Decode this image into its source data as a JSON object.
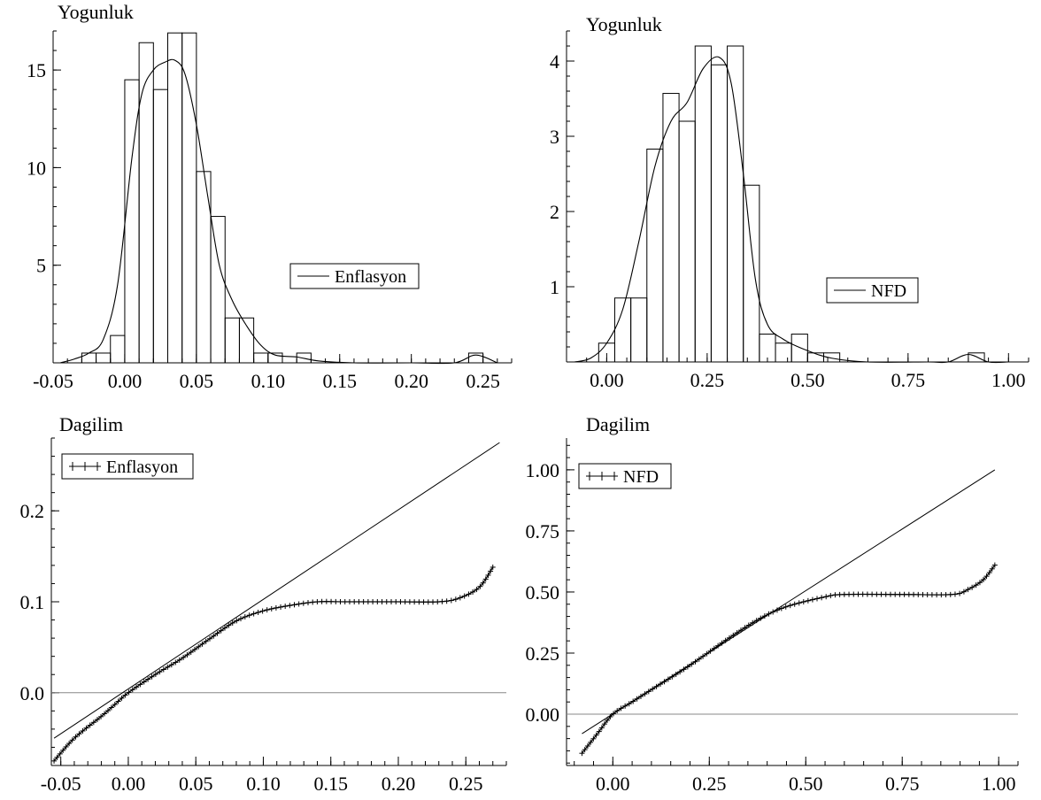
{
  "chart_data": [
    {
      "type": "histogram_density",
      "title": "Yogunluk",
      "xlim": [
        -0.05,
        0.27
      ],
      "ylim": [
        0,
        17
      ],
      "xticks": [
        "-0.05",
        "0.00",
        "0.05",
        "0.10",
        "0.15",
        "0.20",
        "0.25"
      ],
      "yticks": [
        "5",
        "10",
        "15"
      ],
      "legend": {
        "label": "Enflasyon",
        "position": "center-right"
      },
      "bin_width": 0.01,
      "bins": [
        {
          "x": -0.03,
          "value": 0.5
        },
        {
          "x": -0.02,
          "value": 0.5
        },
        {
          "x": -0.01,
          "value": 1.4
        },
        {
          "x": 0.0,
          "value": 14.5
        },
        {
          "x": 0.01,
          "value": 16.4
        },
        {
          "x": 0.02,
          "value": 14.0
        },
        {
          "x": 0.03,
          "value": 16.9
        },
        {
          "x": 0.04,
          "value": 16.9
        },
        {
          "x": 0.05,
          "value": 9.8
        },
        {
          "x": 0.06,
          "value": 7.5
        },
        {
          "x": 0.07,
          "value": 2.3
        },
        {
          "x": 0.08,
          "value": 2.3
        },
        {
          "x": 0.09,
          "value": 0.5
        },
        {
          "x": 0.1,
          "value": 0.5
        },
        {
          "x": 0.12,
          "value": 0.5
        },
        {
          "x": 0.24,
          "value": 0.5
        }
      ],
      "density": [
        [
          -0.045,
          0.0
        ],
        [
          -0.035,
          0.2
        ],
        [
          -0.025,
          0.5
        ],
        [
          -0.015,
          1.2
        ],
        [
          -0.005,
          4.0
        ],
        [
          0.005,
          10.5
        ],
        [
          0.012,
          13.8
        ],
        [
          0.02,
          15.0
        ],
        [
          0.028,
          15.4
        ],
        [
          0.035,
          15.5
        ],
        [
          0.042,
          14.8
        ],
        [
          0.05,
          12.2
        ],
        [
          0.058,
          8.5
        ],
        [
          0.066,
          5.0
        ],
        [
          0.075,
          3.2
        ],
        [
          0.085,
          1.9
        ],
        [
          0.095,
          0.9
        ],
        [
          0.105,
          0.4
        ],
        [
          0.12,
          0.3
        ],
        [
          0.135,
          0.1
        ],
        [
          0.16,
          0.0
        ],
        [
          0.2,
          0.0
        ],
        [
          0.23,
          0.0
        ],
        [
          0.245,
          0.4
        ],
        [
          0.26,
          0.0
        ]
      ]
    },
    {
      "type": "histogram_density",
      "title": "Yogunluk",
      "xlim": [
        -0.1,
        1.05
      ],
      "ylim": [
        0,
        4.4
      ],
      "xticks": [
        "0.00",
        "0.25",
        "0.50",
        "0.75",
        "1.00"
      ],
      "yticks": [
        "1",
        "2",
        "3",
        "4"
      ],
      "legend": {
        "label": "NFD",
        "position": "lower-right"
      },
      "bin_width": 0.04,
      "bins": [
        {
          "x": -0.02,
          "value": 0.25
        },
        {
          "x": 0.02,
          "value": 0.85
        },
        {
          "x": 0.06,
          "value": 0.85
        },
        {
          "x": 0.1,
          "value": 2.83
        },
        {
          "x": 0.14,
          "value": 3.57
        },
        {
          "x": 0.18,
          "value": 3.2
        },
        {
          "x": 0.22,
          "value": 4.2
        },
        {
          "x": 0.26,
          "value": 3.95
        },
        {
          "x": 0.3,
          "value": 4.2
        },
        {
          "x": 0.34,
          "value": 2.35
        },
        {
          "x": 0.38,
          "value": 0.37
        },
        {
          "x": 0.42,
          "value": 0.25
        },
        {
          "x": 0.46,
          "value": 0.37
        },
        {
          "x": 0.5,
          "value": 0.12
        },
        {
          "x": 0.54,
          "value": 0.12
        },
        {
          "x": 0.9,
          "value": 0.12
        }
      ],
      "density": [
        [
          -0.08,
          0.0
        ],
        [
          -0.04,
          0.05
        ],
        [
          0.0,
          0.25
        ],
        [
          0.04,
          0.7
        ],
        [
          0.08,
          1.6
        ],
        [
          0.12,
          2.6
        ],
        [
          0.16,
          3.2
        ],
        [
          0.2,
          3.45
        ],
        [
          0.24,
          3.9
        ],
        [
          0.28,
          4.05
        ],
        [
          0.31,
          3.7
        ],
        [
          0.34,
          2.5
        ],
        [
          0.37,
          1.1
        ],
        [
          0.4,
          0.5
        ],
        [
          0.44,
          0.3
        ],
        [
          0.5,
          0.15
        ],
        [
          0.56,
          0.05
        ],
        [
          0.65,
          0.0
        ],
        [
          0.8,
          0.0
        ],
        [
          0.85,
          0.0
        ],
        [
          0.9,
          0.1
        ],
        [
          0.95,
          0.0
        ],
        [
          1.0,
          0.0
        ]
      ]
    },
    {
      "type": "qq_plot",
      "title": "Dagilim",
      "xlim": [
        -0.057,
        0.28
      ],
      "ylim": [
        -0.08,
        0.28
      ],
      "xticks": [
        "-0.05",
        "0.00",
        "0.05",
        "0.10",
        "0.15",
        "0.20",
        "0.25"
      ],
      "yticks": [
        "0.0",
        "0.1",
        "0.2"
      ],
      "legend": {
        "label": "Enflasyon",
        "position": "top-left"
      },
      "reference_line": [
        [
          -0.055,
          -0.05
        ],
        [
          0.275,
          0.275
        ]
      ],
      "zero_line": 0,
      "quantile_curve": [
        [
          -0.055,
          -0.075
        ],
        [
          -0.04,
          -0.05
        ],
        [
          -0.02,
          -0.026
        ],
        [
          -0.01,
          -0.013
        ],
        [
          0.0,
          0.0
        ],
        [
          0.02,
          0.02
        ],
        [
          0.04,
          0.038
        ],
        [
          0.06,
          0.059
        ],
        [
          0.08,
          0.079
        ],
        [
          0.1,
          0.09
        ],
        [
          0.12,
          0.096
        ],
        [
          0.14,
          0.1
        ],
        [
          0.16,
          0.1
        ],
        [
          0.2,
          0.1
        ],
        [
          0.23,
          0.1
        ],
        [
          0.245,
          0.104
        ],
        [
          0.26,
          0.116
        ],
        [
          0.27,
          0.138
        ]
      ]
    },
    {
      "type": "qq_plot",
      "title": "Dagilim",
      "xlim": [
        -0.12,
        1.05
      ],
      "ylim": [
        -0.21,
        1.13
      ],
      "xticks": [
        "0.00",
        "0.25",
        "0.50",
        "0.75",
        "1.00"
      ],
      "yticks": [
        "0.00",
        "0.25",
        "0.50",
        "0.75",
        "1.00"
      ],
      "legend": {
        "label": "NFD",
        "position": "top-left"
      },
      "reference_line": [
        [
          -0.08,
          -0.08
        ],
        [
          0.99,
          1.0
        ]
      ],
      "zero_line": 0,
      "quantile_curve": [
        [
          -0.08,
          -0.16
        ],
        [
          -0.04,
          -0.08
        ],
        [
          0.0,
          0.0
        ],
        [
          0.05,
          0.05
        ],
        [
          0.1,
          0.1
        ],
        [
          0.2,
          0.2
        ],
        [
          0.3,
          0.31
        ],
        [
          0.38,
          0.39
        ],
        [
          0.45,
          0.44
        ],
        [
          0.55,
          0.48
        ],
        [
          0.6,
          0.49
        ],
        [
          0.75,
          0.49
        ],
        [
          0.88,
          0.49
        ],
        [
          0.92,
          0.51
        ],
        [
          0.96,
          0.55
        ],
        [
          0.99,
          0.61
        ]
      ]
    }
  ]
}
